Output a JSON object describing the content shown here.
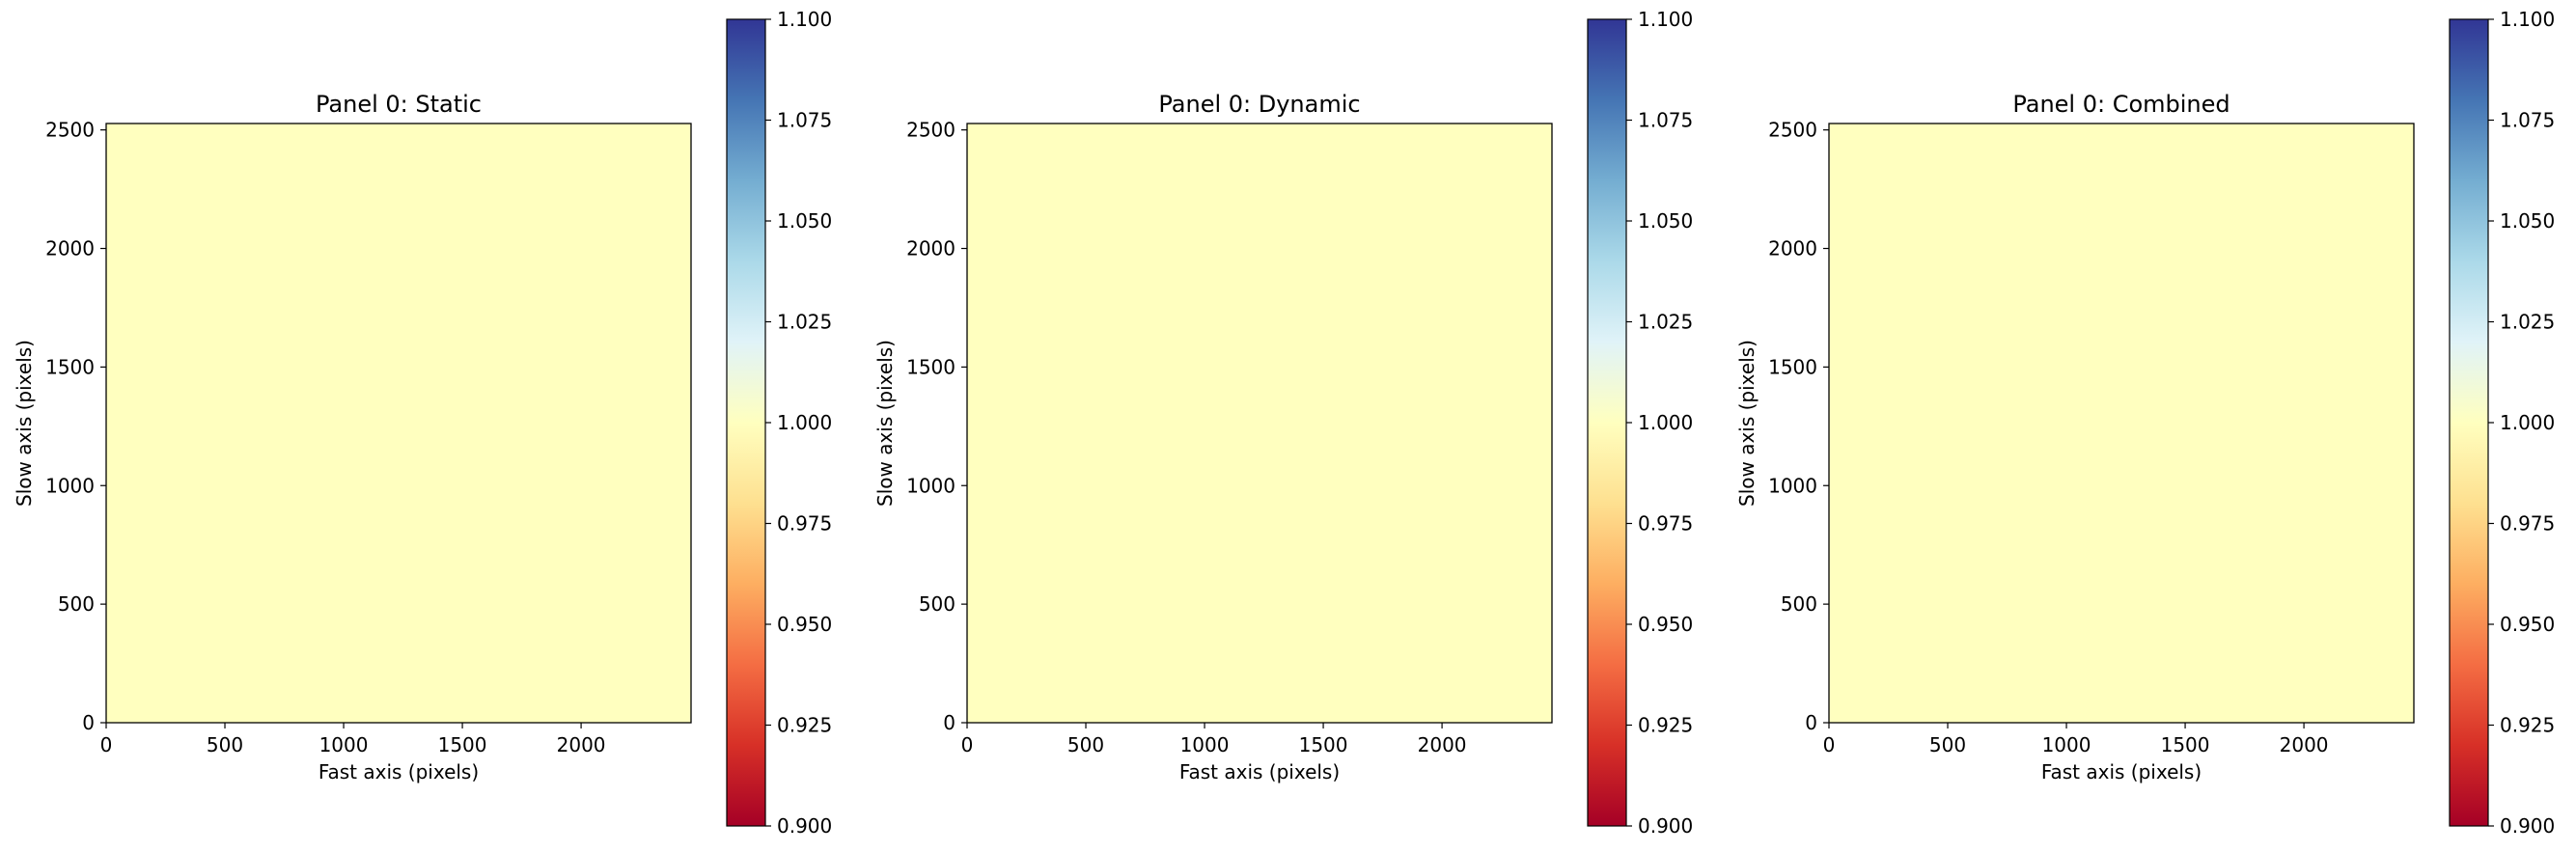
{
  "chart_data": [
    {
      "type": "heatmap",
      "title": "Panel 0: Static",
      "xlabel": "Fast axis (pixels)",
      "ylabel": "Slow axis (pixels)",
      "xlim": [
        0,
        2463
      ],
      "ylim": [
        0,
        2527
      ],
      "xticks": [
        "0",
        "500",
        "1000",
        "1500",
        "2000"
      ],
      "yticks": [
        "0",
        "500",
        "1000",
        "1500",
        "2000",
        "2500"
      ],
      "value": 1.0,
      "colormap": "RdYlBu",
      "colorbar": {
        "min": 0.9,
        "max": 1.1,
        "ticks": [
          "0.900",
          "0.925",
          "0.950",
          "0.975",
          "1.000",
          "1.025",
          "1.050",
          "1.075",
          "1.100"
        ]
      }
    },
    {
      "type": "heatmap",
      "title": "Panel 0: Dynamic",
      "xlabel": "Fast axis (pixels)",
      "ylabel": "Slow axis (pixels)",
      "xlim": [
        0,
        2463
      ],
      "ylim": [
        0,
        2527
      ],
      "xticks": [
        "0",
        "500",
        "1000",
        "1500",
        "2000"
      ],
      "yticks": [
        "0",
        "500",
        "1000",
        "1500",
        "2000",
        "2500"
      ],
      "value": 1.0,
      "colormap": "RdYlBu",
      "colorbar": {
        "min": 0.9,
        "max": 1.1,
        "ticks": [
          "0.900",
          "0.925",
          "0.950",
          "0.975",
          "1.000",
          "1.025",
          "1.050",
          "1.075",
          "1.100"
        ]
      }
    },
    {
      "type": "heatmap",
      "title": "Panel 0: Combined",
      "xlabel": "Fast axis (pixels)",
      "ylabel": "Slow axis (pixels)",
      "xlim": [
        0,
        2463
      ],
      "ylim": [
        0,
        2527
      ],
      "xticks": [
        "0",
        "500",
        "1000",
        "1500",
        "2000"
      ],
      "yticks": [
        "0",
        "500",
        "1000",
        "1500",
        "2000",
        "2500"
      ],
      "value": 1.0,
      "colormap": "RdYlBu",
      "colorbar": {
        "min": 0.9,
        "max": 1.1,
        "ticks": [
          "0.900",
          "0.925",
          "0.950",
          "0.975",
          "1.000",
          "1.025",
          "1.050",
          "1.075",
          "1.100"
        ]
      }
    }
  ],
  "colors": {
    "field": "#ffffbf",
    "colormap_stops": [
      "#a50026",
      "#d73027",
      "#f46d43",
      "#fdae61",
      "#fee090",
      "#ffffbf",
      "#e0f3f8",
      "#abd9e9",
      "#74add1",
      "#4575b4",
      "#313695"
    ]
  }
}
